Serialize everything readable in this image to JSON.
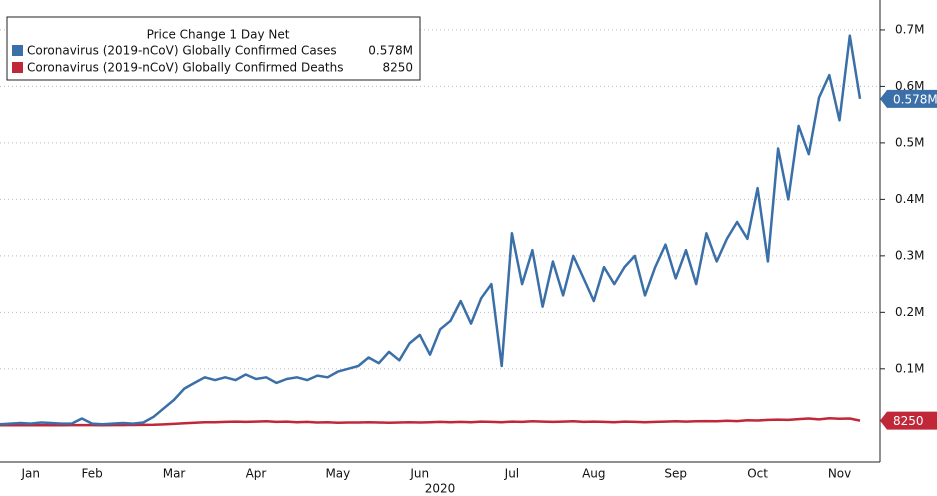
{
  "chart_data": {
    "type": "line",
    "title": "Price Change 1 Day Net",
    "x_label": "2020",
    "categories": [
      null,
      null,
      null,
      "Jan",
      null,
      null,
      null,
      null,
      null,
      "Feb",
      null,
      null,
      null,
      null,
      null,
      null,
      null,
      "Mar",
      null,
      null,
      null,
      null,
      null,
      null,
      null,
      "Apr",
      null,
      null,
      null,
      null,
      null,
      null,
      null,
      "May",
      null,
      null,
      null,
      null,
      null,
      null,
      null,
      "Jun",
      null,
      null,
      null,
      null,
      null,
      null,
      null,
      null,
      "Jul",
      null,
      null,
      null,
      null,
      null,
      null,
      null,
      "Aug",
      null,
      null,
      null,
      null,
      null,
      null,
      null,
      "Sep",
      null,
      null,
      null,
      null,
      null,
      null,
      null,
      "Oct",
      null,
      null,
      null,
      null,
      null,
      null,
      null,
      "Nov",
      null,
      null
    ],
    "series": [
      {
        "name": "Coronavirus (2019-nCoV) Globally Confirmed Cases",
        "color": "#3a6fa8",
        "end_label": "0.578M",
        "values": [
          2000,
          3000,
          4000,
          3000,
          5000,
          4000,
          3000,
          3000,
          12000,
          3000,
          2000,
          3000,
          4000,
          3000,
          5000,
          15000,
          30000,
          45000,
          65000,
          75000,
          85000,
          80000,
          85000,
          80000,
          90000,
          82000,
          85000,
          75000,
          82000,
          85000,
          80000,
          88000,
          85000,
          95000,
          100000,
          105000,
          120000,
          110000,
          130000,
          115000,
          145000,
          160000,
          125000,
          170000,
          185000,
          220000,
          180000,
          225000,
          250000,
          105000,
          340000,
          250000,
          310000,
          210000,
          290000,
          230000,
          300000,
          260000,
          220000,
          280000,
          250000,
          280000,
          300000,
          230000,
          280000,
          320000,
          260000,
          310000,
          250000,
          340000,
          290000,
          330000,
          360000,
          330000,
          420000,
          290000,
          490000,
          400000,
          530000,
          480000,
          580000,
          620000,
          540000,
          690000,
          578000
        ]
      },
      {
        "name": "Coronavirus (2019-nCoV) Globally Confirmed Deaths",
        "color": "#c0283a",
        "end_label": "8250",
        "values": [
          0,
          0,
          50,
          100,
          100,
          150,
          200,
          250,
          250,
          300,
          200,
          300,
          400,
          500,
          600,
          800,
          1500,
          2500,
          3500,
          4500,
          5500,
          5500,
          6000,
          6500,
          6000,
          6500,
          7000,
          6000,
          6500,
          5500,
          6000,
          5000,
          5500,
          4500,
          5000,
          5000,
          5500,
          5000,
          4500,
          5000,
          5500,
          5000,
          5500,
          6000,
          5500,
          6000,
          5500,
          6500,
          6000,
          5500,
          6500,
          6000,
          7000,
          6500,
          6000,
          6500,
          7000,
          6000,
          6500,
          6000,
          5500,
          6500,
          6000,
          5500,
          6000,
          6500,
          7000,
          6500,
          7000,
          7500,
          7000,
          8000,
          7500,
          9000,
          8500,
          9500,
          10000,
          9500,
          11000,
          12000,
          10500,
          12500,
          11500,
          12000,
          8250
        ]
      }
    ],
    "ylim": [
      -65000,
      753000
    ],
    "yticks": [
      {
        "value": 100000,
        "label": "0.1M"
      },
      {
        "value": 200000,
        "label": "0.2M"
      },
      {
        "value": 300000,
        "label": "0.3M"
      },
      {
        "value": 400000,
        "label": "0.4M"
      },
      {
        "value": 500000,
        "label": "0.5M"
      },
      {
        "value": 600000,
        "label": "0.6M"
      },
      {
        "value": 700000,
        "label": "0.7M"
      }
    ],
    "grid": true
  }
}
